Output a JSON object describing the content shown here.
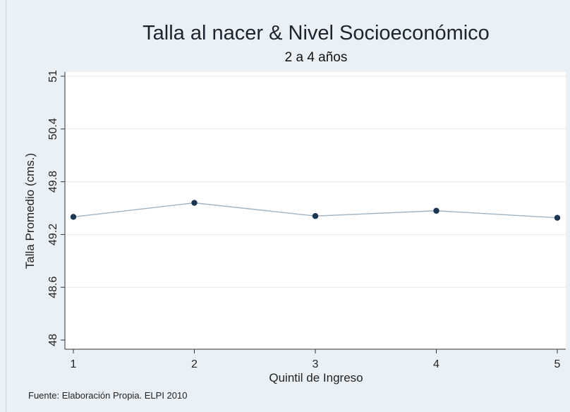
{
  "chart_data": {
    "type": "line",
    "title": "Talla al nacer & Nivel Socioeconómico",
    "subtitle": "2 a 4 años",
    "xlabel": "Quintil de Ingreso",
    "ylabel": "Talla Promedio (cms.)",
    "x": [
      1,
      2,
      3,
      4,
      5
    ],
    "y": [
      49.4,
      49.56,
      49.41,
      49.47,
      49.39
    ],
    "xticks": [
      "1",
      "2",
      "3",
      "4",
      "5"
    ],
    "yticks": [
      "48",
      "48.6",
      "49.2",
      "49.8",
      "50.4",
      "51"
    ],
    "ylim": [
      48,
      51
    ],
    "xlim": [
      1,
      5
    ],
    "grid": true,
    "note": "Fuente: Elaboración Propia. ELPI 2010",
    "colors": {
      "line": "#9fb2c2",
      "marker": "#1b3552",
      "grid": "#e4ebf0",
      "plot_background": "#ffffff",
      "figure_background": "#eaf1f6"
    }
  }
}
